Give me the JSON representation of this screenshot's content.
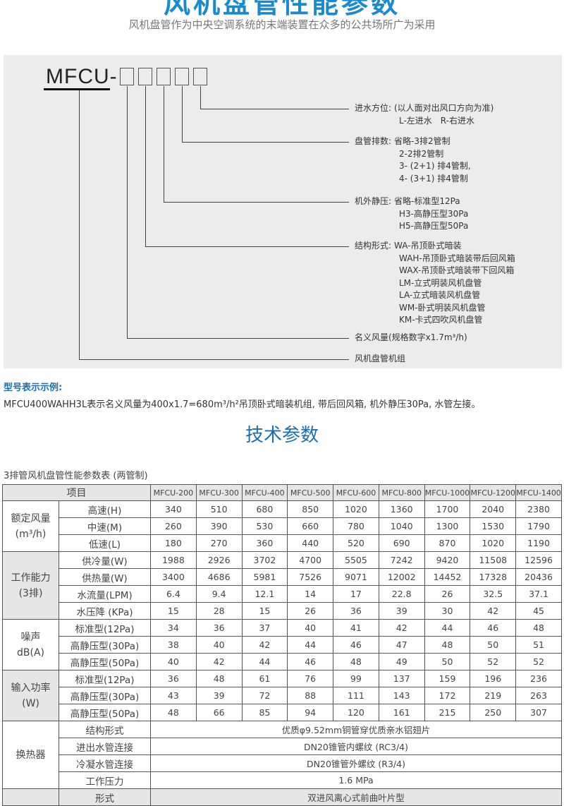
{
  "header": {
    "title": "风机盘管性能参数",
    "subtitle": "风机盘管作为中央空调系统的末端装置在众多的公共场所广为采用"
  },
  "diagram": {
    "model_prefix": "MFCU-",
    "entries": [
      {
        "label": "进水方位:",
        "lines": [
          "(以人面对出风口方向为准)",
          "L-左进水　R-右进水"
        ]
      },
      {
        "label": "盘管排数:",
        "lines": [
          "省略-3排2管制",
          "2-2排2管制",
          "3- (2+1) 排4管制,",
          "4- (3+1) 排4管制"
        ]
      },
      {
        "label": "机外静压:",
        "lines": [
          "省略-标准型12Pa",
          "H3-高静压型30Pa",
          "H5-高静压型50Pa"
        ]
      },
      {
        "label": "结构形式:",
        "lines": [
          "WA-吊顶卧式暗装",
          "WAH-吊顶卧式暗装带后回风箱",
          "WAX-吊顶卧式暗装带下回风箱",
          "LM-立式明装风机盘管",
          "LA-立式暗装风机盘管",
          "WM-卧式明装风机盘管",
          "KM-卡式四吹风机盘管"
        ]
      },
      {
        "label": "",
        "lines": [
          "名义风量(规格数字x1.7m³/h)"
        ]
      },
      {
        "label": "",
        "lines": [
          "风机盘管机组"
        ]
      }
    ]
  },
  "example": {
    "heading": "型号表示示例:",
    "text": "MFCU400WAHH3L表示名义风量为400x1.7=680m³/h²吊顶卧式暗装机组, 带后回风箱, 机外静压30Pa, 水管左接。"
  },
  "section_title": "技术参数",
  "table": {
    "caption": "3排管风机盘管性能参数表 (两管制)",
    "item_header": "项目",
    "models": [
      "MFCU-200",
      "MFCU-300",
      "MFCU-400",
      "MFCU-500",
      "MFCU-600",
      "MFCU-800",
      "MFCU-1000",
      "MFCU-1200",
      "MFCU-1400"
    ],
    "groups": [
      {
        "name": "额定风量\n(m³/h)",
        "rows": [
          {
            "label": "高速(H)",
            "values": [
              "340",
              "510",
              "680",
              "850",
              "1020",
              "1360",
              "1700",
              "2040",
              "2380"
            ]
          },
          {
            "label": "中速(M)",
            "values": [
              "260",
              "390",
              "530",
              "660",
              "780",
              "1040",
              "1300",
              "1530",
              "1790"
            ]
          },
          {
            "label": "低速(L)",
            "values": [
              "180",
              "270",
              "360",
              "440",
              "520",
              "690",
              "870",
              "1020",
              "1190"
            ]
          }
        ]
      },
      {
        "name": "工作能力\n(3排)",
        "rows": [
          {
            "label": "供冷量(W)",
            "values": [
              "1988",
              "2926",
              "3702",
              "4700",
              "5505",
              "7242",
              "9420",
              "11508",
              "12596"
            ]
          },
          {
            "label": "供热量(W)",
            "values": [
              "3400",
              "4686",
              "5981",
              "7526",
              "9071",
              "12002",
              "14452",
              "17328",
              "20436"
            ]
          },
          {
            "label": "水流量(LPM)",
            "values": [
              "6.4",
              "9.4",
              "12.1",
              "14",
              "17",
              "22.8",
              "26",
              "32.5",
              "37.1"
            ]
          },
          {
            "label": "水压降 (KPa)",
            "values": [
              "15",
              "28",
              "15",
              "26",
              "36",
              "39",
              "30",
              "42",
              "45"
            ]
          }
        ]
      },
      {
        "name": "噪声\ndB(A)",
        "rows": [
          {
            "label": "标准型(12Pa)",
            "values": [
              "34",
              "36",
              "37",
              "40",
              "41",
              "42",
              "44",
              "46",
              "48"
            ]
          },
          {
            "label": "高静压型(30Pa)",
            "values": [
              "38",
              "40",
              "42",
              "44",
              "46",
              "47",
              "48",
              "50",
              "51"
            ]
          },
          {
            "label": "高静压型(50Pa)",
            "values": [
              "40",
              "42",
              "44",
              "46",
              "48",
              "49",
              "50",
              "52",
              "52"
            ]
          }
        ]
      },
      {
        "name": "输入功率\n(W)",
        "rows": [
          {
            "label": "标准型(12Pa)",
            "values": [
              "36",
              "48",
              "61",
              "76",
              "99",
              "137",
              "159",
              "196",
              "236"
            ]
          },
          {
            "label": "高静压型(30Pa)",
            "values": [
              "43",
              "39",
              "72",
              "88",
              "111",
              "143",
              "172",
              "219",
              "263"
            ]
          },
          {
            "label": "高静压型(50Pa)",
            "values": [
              "48",
              "66",
              "85",
              "94",
              "120",
              "161",
              "215",
              "250",
              "307"
            ]
          }
        ]
      },
      {
        "name": "换热器",
        "rows": [
          {
            "label": "结构形式",
            "span": "优质φ9.52mm铜管穿优质亲水铝翅片"
          },
          {
            "label": "进出水管连接",
            "span": "DN20锥管内螺纹 (RC3/4)"
          },
          {
            "label": "冷凝水管连接",
            "span": "DN20锥管外螺纹 (R3/4)"
          },
          {
            "label": "工作压力",
            "span": "1.6 MPa"
          }
        ]
      },
      {
        "name": "",
        "rows": [
          {
            "label": "形式",
            "span": "双进风离心式前曲叶片型"
          }
        ]
      }
    ]
  }
}
